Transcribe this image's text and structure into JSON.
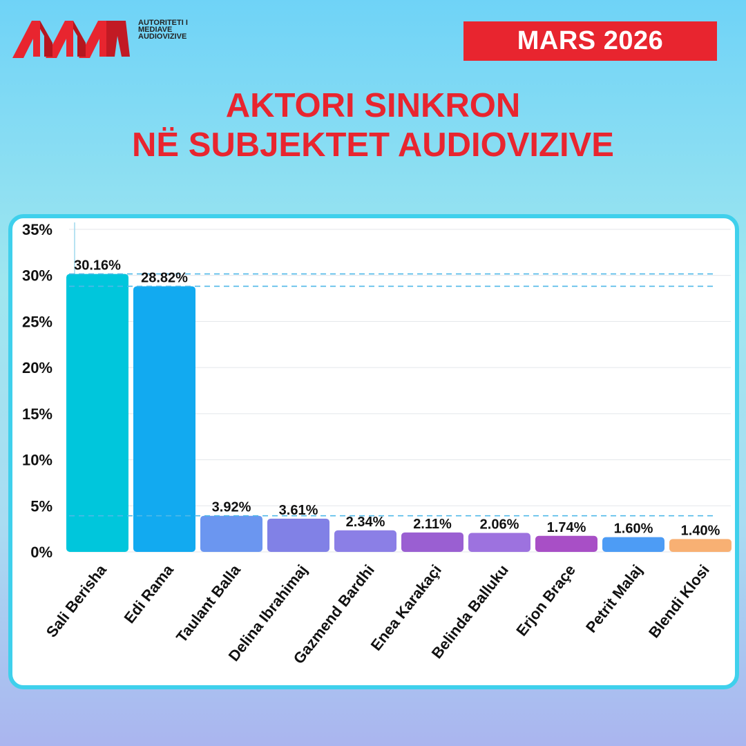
{
  "logo": {
    "lines": [
      "AUTORITETI I",
      "MEDIAVE",
      "AUDIOVIZIVE"
    ]
  },
  "header": {
    "date": "MARS 2026",
    "title_line1": "AKTORI SINKRON",
    "title_line2": "NË SUBJEKTET AUDIOVIZIVE"
  },
  "colors": {
    "accent": "#e8252f",
    "panel_border": "#3fd0ec"
  },
  "chart_data": {
    "type": "bar",
    "title": "",
    "xlabel": "",
    "ylabel": "",
    "ylim": [
      0,
      35
    ],
    "yticks": [
      {
        "value": 0,
        "label": "0%"
      },
      {
        "value": 5,
        "label": "5%"
      },
      {
        "value": 10,
        "label": "10%"
      },
      {
        "value": 15,
        "label": "15%"
      },
      {
        "value": 20,
        "label": "20%"
      },
      {
        "value": 25,
        "label": "25%"
      },
      {
        "value": 30,
        "label": "30%"
      },
      {
        "value": 35,
        "label": "35%"
      }
    ],
    "grid": true,
    "reference_lines": [
      30.16,
      28.82,
      3.92
    ],
    "categories": [
      "Sali Berisha",
      "Edi Rama",
      "Taulant Balla",
      "Delina Ibrahimaj",
      "Gazmend Bardhi",
      "Enea Karakaçi",
      "Belinda Balluku",
      "Erjon Braçe",
      "Petrit Malaj",
      "Blendi Klosi"
    ],
    "values": [
      30.16,
      28.82,
      3.92,
      3.61,
      2.34,
      2.11,
      2.06,
      1.74,
      1.6,
      1.4
    ],
    "value_labels": [
      "30.16%",
      "28.82%",
      "3.92%",
      "3.61%",
      "2.34%",
      "2.11%",
      "2.06%",
      "1.74%",
      "1.60%",
      "1.40%"
    ],
    "colors": [
      "#00c6dc",
      "#12aaf0",
      "#6b96f0",
      "#8181e6",
      "#8b7fe6",
      "#9a5fd2",
      "#9d72df",
      "#a84fc6",
      "#4d9cf5",
      "#f8b073"
    ]
  }
}
